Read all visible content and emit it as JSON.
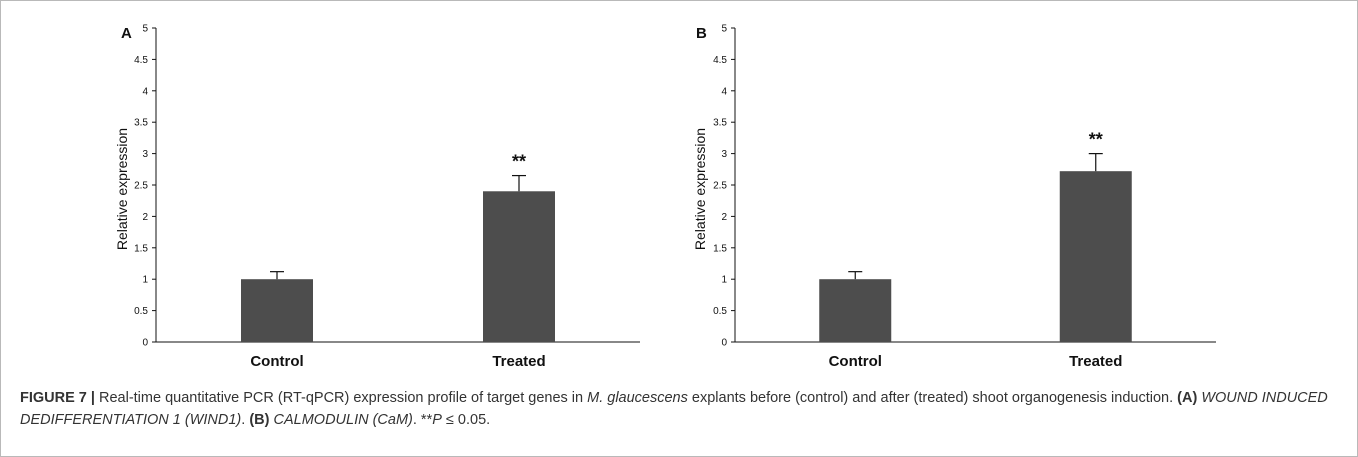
{
  "chart_data": [
    {
      "panel": "A",
      "type": "bar",
      "categories": [
        "Control",
        "Treated"
      ],
      "values": [
        1.0,
        2.4
      ],
      "errors": [
        0.12,
        0.25
      ],
      "annotations": [
        "",
        "**"
      ],
      "ylabel": "Relative expression",
      "ylim": [
        0,
        5
      ],
      "yticks": [
        "0",
        "0.5",
        "1",
        "1.5",
        "2",
        "2.5",
        "3",
        "3.5",
        "4",
        "4.5",
        "5"
      ],
      "bar_color": "#4d4d4d",
      "grid": false
    },
    {
      "panel": "B",
      "type": "bar",
      "categories": [
        "Control",
        "Treated"
      ],
      "values": [
        1.0,
        2.72
      ],
      "errors": [
        0.12,
        0.28
      ],
      "annotations": [
        "",
        "**"
      ],
      "ylabel": "Relative expression",
      "ylim": [
        0,
        5
      ],
      "yticks": [
        "0",
        "0.5",
        "1",
        "1.5",
        "2",
        "2.5",
        "3",
        "3.5",
        "4",
        "4.5",
        "5"
      ],
      "bar_color": "#4d4d4d",
      "grid": false
    }
  ],
  "caption": {
    "label": "FIGURE 7 |",
    "text1": " Real-time quantitative PCR (RT-qPCR) expression profile of target genes in ",
    "species": "M. glaucescens",
    "text2": " explants before (control) and after (treated) shoot organogenesis induction. ",
    "a_ref": "(A)",
    "a_gene": "WOUND INDUCED DEDIFFERENTIATION 1 (WIND1)",
    "sep": ". ",
    "b_ref": "(B)",
    "b_gene": "CALMODULIN (CaM)",
    "text3": ". **",
    "p_symbol": "P",
    "text4": " ≤ 0.05."
  }
}
